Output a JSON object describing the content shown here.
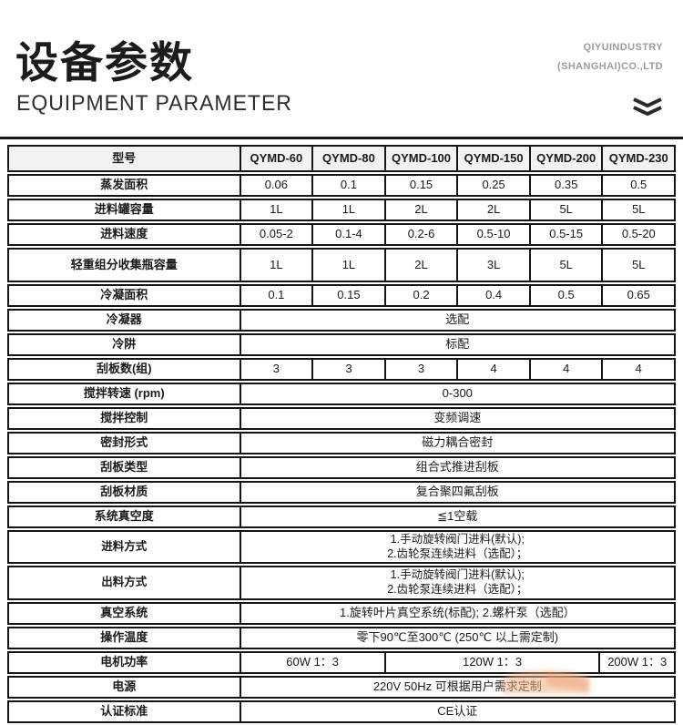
{
  "header": {
    "title_cn": "设备参数",
    "title_en": "EQUIPMENT PARAMETER",
    "company_line1": "QIYUINDUSTRY",
    "company_line2": "(SHANGHAI)CO.,LTD",
    "chevron_icon": "double-chevron-down"
  },
  "colors": {
    "border": "#141414",
    "header_row_bg": "#f2f2f2",
    "company_gray": "#9c9c9c",
    "accent_orange": "#f2b28a"
  },
  "table": {
    "columns": [
      "型号",
      "QYMD-60",
      "QYMD-80",
      "QYMD-100",
      "QYMD-150",
      "QYMD-200",
      "QYMD-230"
    ],
    "rows": [
      {
        "label": "蒸发面积",
        "type": "cells",
        "cells": [
          "0.06",
          "0.1",
          "0.15",
          "0.25",
          "0.35",
          "0.5"
        ]
      },
      {
        "label": "进料罐容量",
        "type": "cells",
        "cells": [
          "1L",
          "1L",
          "2L",
          "2L",
          "5L",
          "5L"
        ]
      },
      {
        "label": "进料速度",
        "type": "cells",
        "cells": [
          "0.05-2",
          "0.1-4",
          "0.2-6",
          "0.5-10",
          "0.5-15",
          "0.5-20"
        ]
      },
      {
        "label": "轻重组分收集瓶容量",
        "type": "cells",
        "tall": true,
        "cells": [
          "1L",
          "1L",
          "2L",
          "3L",
          "5L",
          "5L"
        ]
      },
      {
        "label": "冷凝面积",
        "type": "cells",
        "cells": [
          "0.1",
          "0.15",
          "0.2",
          "0.4",
          "0.5",
          "0.65"
        ]
      },
      {
        "label": "冷凝器",
        "type": "span",
        "value": "选配"
      },
      {
        "label": "冷阱",
        "type": "span",
        "value": "标配"
      },
      {
        "label": "刮板数(组)",
        "type": "cells",
        "cells": [
          "3",
          "3",
          "3",
          "4",
          "4",
          "4"
        ]
      },
      {
        "label": "搅拌转速 (rpm)",
        "type": "span",
        "value": "0-300"
      },
      {
        "label": "搅拌控制",
        "type": "span",
        "value": "变频调速"
      },
      {
        "label": "密封形式",
        "type": "span",
        "value": "磁力耦合密封"
      },
      {
        "label": "刮板类型",
        "type": "span",
        "value": "组合式推进刮板"
      },
      {
        "label": "刮板材质",
        "type": "span",
        "value": "复合聚四氟刮板"
      },
      {
        "label": "系统真空度",
        "type": "span",
        "value": "≦1空载"
      },
      {
        "label": "进料方式",
        "type": "span",
        "lines": [
          "1.手动旋转阀门进料(默认);",
          "2.齿轮泵连续进料（选配）；"
        ]
      },
      {
        "label": "出料方式",
        "type": "span",
        "lines": [
          "1.手动旋转阀门进料(默认);",
          "2.齿轮泵连续进料（选配）；"
        ]
      },
      {
        "label": "真空系统",
        "type": "span",
        "value": "1.旋转叶片真空系统(标配);  2.螺杆泵（选配）"
      },
      {
        "label": "操作温度",
        "type": "span",
        "value": "零下90℃至300℃ (250℃ 以上需定制)"
      },
      {
        "label": "电机功率",
        "type": "multispan",
        "cells": [
          {
            "text": "60W 1：3",
            "span": 2
          },
          {
            "text": "120W 1：3",
            "span": 3
          },
          {
            "text": "200W 1：3",
            "span": 1
          }
        ]
      },
      {
        "label": "电源",
        "type": "span",
        "value": "220V 50Hz 可根据用户需求定制"
      },
      {
        "label": "认证标准",
        "type": "span",
        "value": "CE认证"
      }
    ]
  }
}
